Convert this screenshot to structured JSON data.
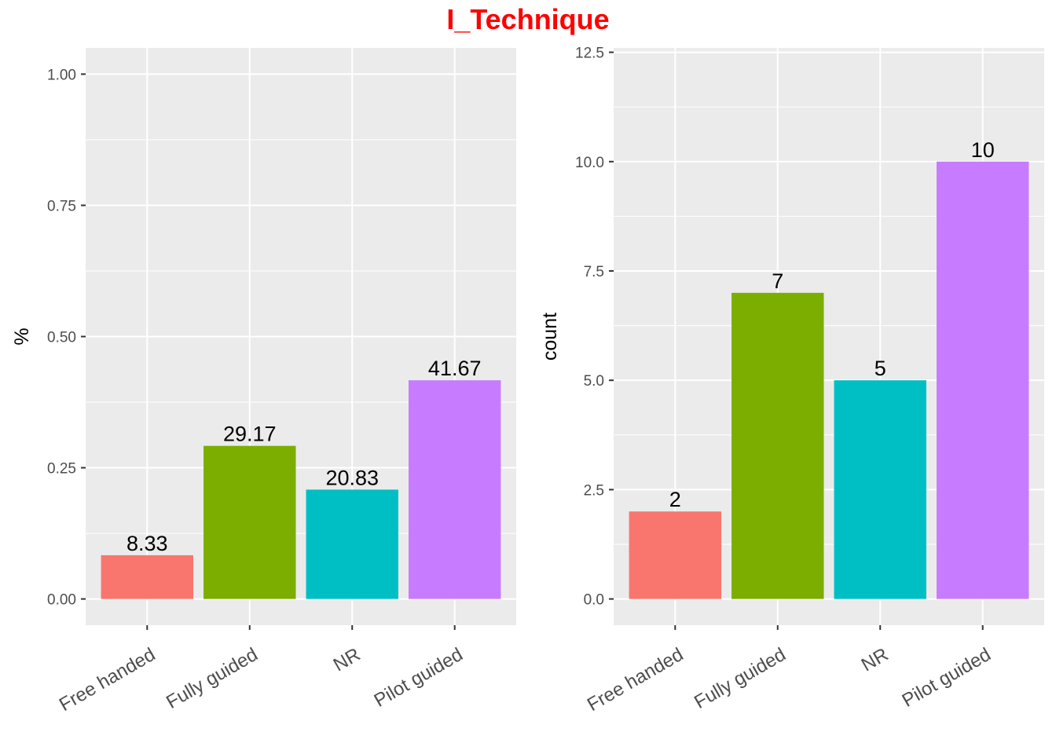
{
  "title": "I_Technique",
  "title_color": "#ff0000",
  "panel_bg": "#ebebeb",
  "chart_data": [
    {
      "type": "bar",
      "categories": [
        "Free handed",
        "Fully guided",
        "NR",
        "Pilot guided"
      ],
      "values": [
        0.0833,
        0.2917,
        0.2083,
        0.4167
      ],
      "data_labels": [
        "8.33",
        "29.17",
        "20.83",
        "41.67"
      ],
      "colors": [
        "#f8766d",
        "#7cae00",
        "#00bfc4",
        "#c77cff"
      ],
      "xlabel": "",
      "ylabel": "%",
      "ylim": [
        -0.05,
        1.05
      ],
      "yticks": [
        0,
        0.25,
        0.5,
        0.75,
        1
      ],
      "ytick_labels": [
        "0.00",
        "0.25",
        "0.50",
        "0.75",
        "1.00"
      ],
      "grid": true,
      "legend": "none"
    },
    {
      "type": "bar",
      "categories": [
        "Free handed",
        "Fully guided",
        "NR",
        "Pilot guided"
      ],
      "values": [
        2,
        7,
        5,
        10
      ],
      "data_labels": [
        "2",
        "7",
        "5",
        "10"
      ],
      "colors": [
        "#f8766d",
        "#7cae00",
        "#00bfc4",
        "#c77cff"
      ],
      "xlabel": "",
      "ylabel": "count",
      "ylim": [
        -0.6,
        12.6
      ],
      "yticks": [
        0,
        2.5,
        5,
        7.5,
        10,
        12.5
      ],
      "ytick_labels": [
        "0.0",
        "2.5",
        "5.0",
        "7.5",
        "10.0",
        "12.5"
      ],
      "grid": true,
      "legend": "none"
    }
  ]
}
